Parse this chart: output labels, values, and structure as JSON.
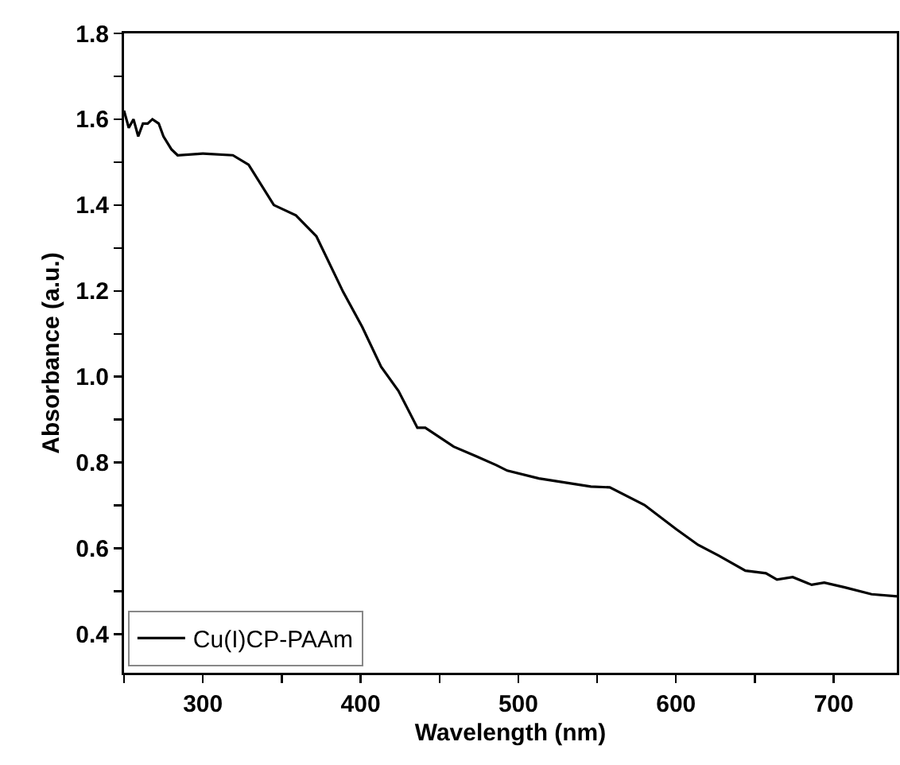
{
  "chart_data": {
    "type": "line",
    "xlabel": "Wavelength (nm)",
    "ylabel": "Absorbance (a.u.)",
    "xlim": [
      250,
      740
    ],
    "ylim": [
      0.31,
      1.8
    ],
    "xticks": [
      {
        "value": 250,
        "label": null
      },
      300,
      {
        "value": 350,
        "label": null
      },
      400,
      {
        "value": 450,
        "label": null
      },
      500,
      {
        "value": 550,
        "label": null
      },
      600,
      {
        "value": 650,
        "label": null
      },
      700
    ],
    "yticks": [
      0.4,
      {
        "value": 0.5,
        "label": null
      },
      0.6,
      {
        "value": 0.7,
        "label": null
      },
      0.8,
      {
        "value": 0.9,
        "label": null
      },
      {
        "value": 1,
        "label": "1.0"
      },
      {
        "value": 1.1,
        "label": null
      },
      1.2,
      {
        "value": 1.3,
        "label": null
      },
      1.4,
      {
        "value": 1.5,
        "label": null
      },
      1.6,
      {
        "value": 1.7,
        "label": null
      },
      1.8
    ],
    "series": [
      {
        "name": "Cu(I)CP-PAAm",
        "color": "#000000",
        "x": [
          250,
          253,
          256,
          259,
          262,
          265,
          268,
          272,
          275,
          280,
          284,
          300,
          319,
          329,
          345,
          359,
          372,
          389,
          401,
          413,
          424,
          436,
          441,
          459,
          473,
          486,
          493,
          513,
          546,
          558,
          580,
          600,
          614,
          627,
          644,
          657,
          664,
          674,
          686,
          694,
          707,
          724,
          740
        ],
        "values": [
          1.62,
          1.58,
          1.6,
          1.56,
          1.59,
          1.59,
          1.6,
          1.59,
          1.56,
          1.53,
          1.516,
          1.52,
          1.516,
          1.494,
          1.4,
          1.376,
          1.327,
          1.197,
          1.116,
          1.023,
          0.967,
          0.881,
          0.881,
          0.837,
          0.815,
          0.794,
          0.781,
          0.763,
          0.744,
          0.742,
          0.701,
          0.645,
          0.608,
          0.583,
          0.548,
          0.542,
          0.527,
          0.533,
          0.515,
          0.52,
          0.509,
          0.493,
          0.488
        ]
      }
    ],
    "legend": "bottom left",
    "grid": false,
    "marker": "none",
    "line_style": "solid"
  }
}
